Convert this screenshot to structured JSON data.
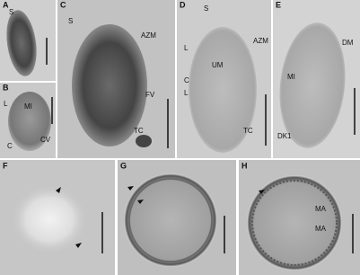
{
  "panels": [
    {
      "letter": "A",
      "labels": [
        "S"
      ]
    },
    {
      "letter": "B",
      "labels": [
        "L",
        "MI",
        "C",
        "CV"
      ]
    },
    {
      "letter": "C",
      "labels": [
        "S",
        "AZM",
        "FV",
        "TC"
      ]
    },
    {
      "letter": "D",
      "labels": [
        "S",
        "AZM",
        "L",
        "UM",
        "C",
        "L",
        "TC"
      ]
    },
    {
      "letter": "E",
      "labels": [
        "DM",
        "MI",
        "DK1"
      ]
    },
    {
      "letter": "F",
      "labels": []
    },
    {
      "letter": "G",
      "labels": []
    },
    {
      "letter": "H",
      "labels": [
        "MA",
        "MA"
      ]
    }
  ]
}
